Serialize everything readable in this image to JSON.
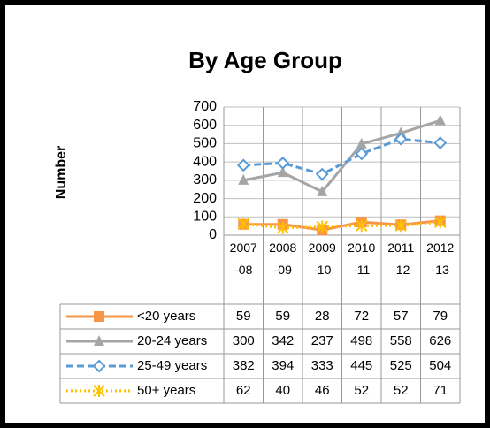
{
  "chart_data": {
    "type": "line",
    "title": "By Age Group",
    "y_label": "Number",
    "categories": [
      "2007-08",
      "2008-09",
      "2009-10",
      "2010-11",
      "2011-12",
      "2012-13"
    ],
    "series": [
      {
        "name": "<20 years",
        "color": "#f79646",
        "marker": "square",
        "dash": "solid",
        "values": [
          59,
          59,
          28,
          72,
          57,
          79
        ]
      },
      {
        "name": "20-24 years",
        "color": "#a5a5a5",
        "marker": "triangle",
        "dash": "solid",
        "values": [
          300,
          342,
          237,
          498,
          558,
          626
        ]
      },
      {
        "name": "25-49 years",
        "color": "#5b9bd5",
        "marker": "diamond",
        "dash": "dashed",
        "values": [
          382,
          394,
          333,
          445,
          525,
          504
        ]
      },
      {
        "name": "50+ years",
        "color": "#ffc000",
        "marker": "star",
        "dash": "dotted",
        "values": [
          62,
          40,
          46,
          52,
          52,
          71
        ]
      }
    ],
    "ylim": [
      0,
      700
    ],
    "yticks": [
      0,
      100,
      200,
      300,
      400,
      500,
      600,
      700
    ],
    "grid": true,
    "data_table": true
  }
}
